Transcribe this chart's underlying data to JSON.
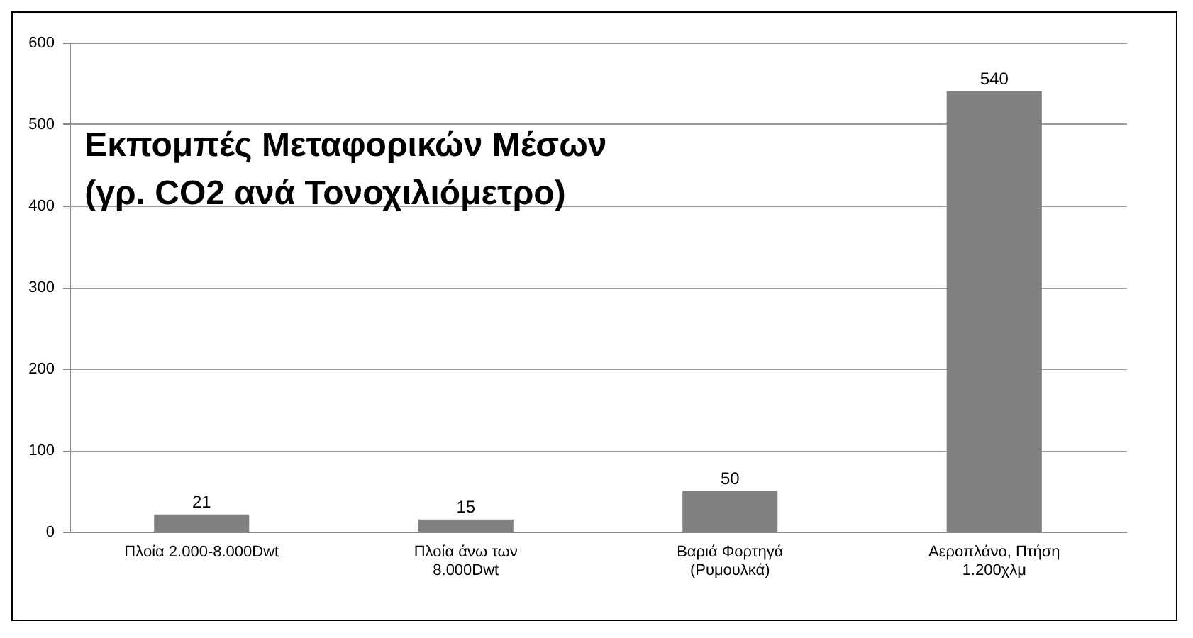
{
  "chart_data": {
    "type": "bar",
    "title": [
      "Εκπομπές Μεταφορικών Μέσων",
      "(γρ. CO2 ανά Τονοχιλιόμετρο)"
    ],
    "categories": [
      "Πλοία 2.000-8.000Dwt",
      "Πλοία άνω των 8.000Dwt",
      "Βαριά Φορτηγά (Ρυμουλκά)",
      "Αεροπλάνο, Πτήση 1.200χλμ"
    ],
    "values": [
      21,
      15,
      50,
      540
    ],
    "color": "#808080",
    "ylim": [
      0,
      600
    ],
    "yticks": [
      0,
      100,
      200,
      300,
      400,
      500,
      600
    ],
    "grid": "y",
    "data_labels": true
  }
}
